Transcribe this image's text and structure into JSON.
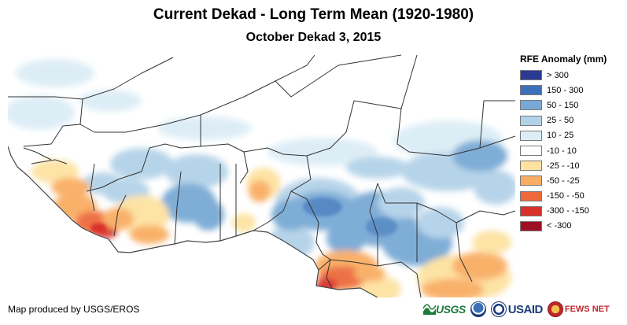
{
  "header": {
    "title": "Current Dekad - Long Term Mean (1920-1980)",
    "subtitle": "October Dekad 3, 2015"
  },
  "legend": {
    "title": "RFE Anomaly (mm)",
    "items": [
      {
        "label": "> 300",
        "color": "#2b3a92"
      },
      {
        "label": "150 - 300",
        "color": "#3d6fb8"
      },
      {
        "label": "50 - 150",
        "color": "#78a9d4"
      },
      {
        "label": "25 - 50",
        "color": "#b3d2e8"
      },
      {
        "label": "10 - 25",
        "color": "#dcedf6"
      },
      {
        "label": "-10 - 10",
        "color": "#ffffff"
      },
      {
        "label": "-25 - -10",
        "color": "#fde2a0"
      },
      {
        "label": "-50 - -25",
        "color": "#f9ad64"
      },
      {
        "label": "-150 - -50",
        "color": "#ee6a3c"
      },
      {
        "label": "-300 - -150",
        "color": "#d9302a"
      },
      {
        "label": "< -300",
        "color": "#9e0f26"
      }
    ]
  },
  "footer": {
    "credit": "Map produced by USGS/EROS",
    "logos": {
      "usgs": "USGS",
      "usaid": "USAID",
      "fews": "FEWS NET"
    }
  }
}
